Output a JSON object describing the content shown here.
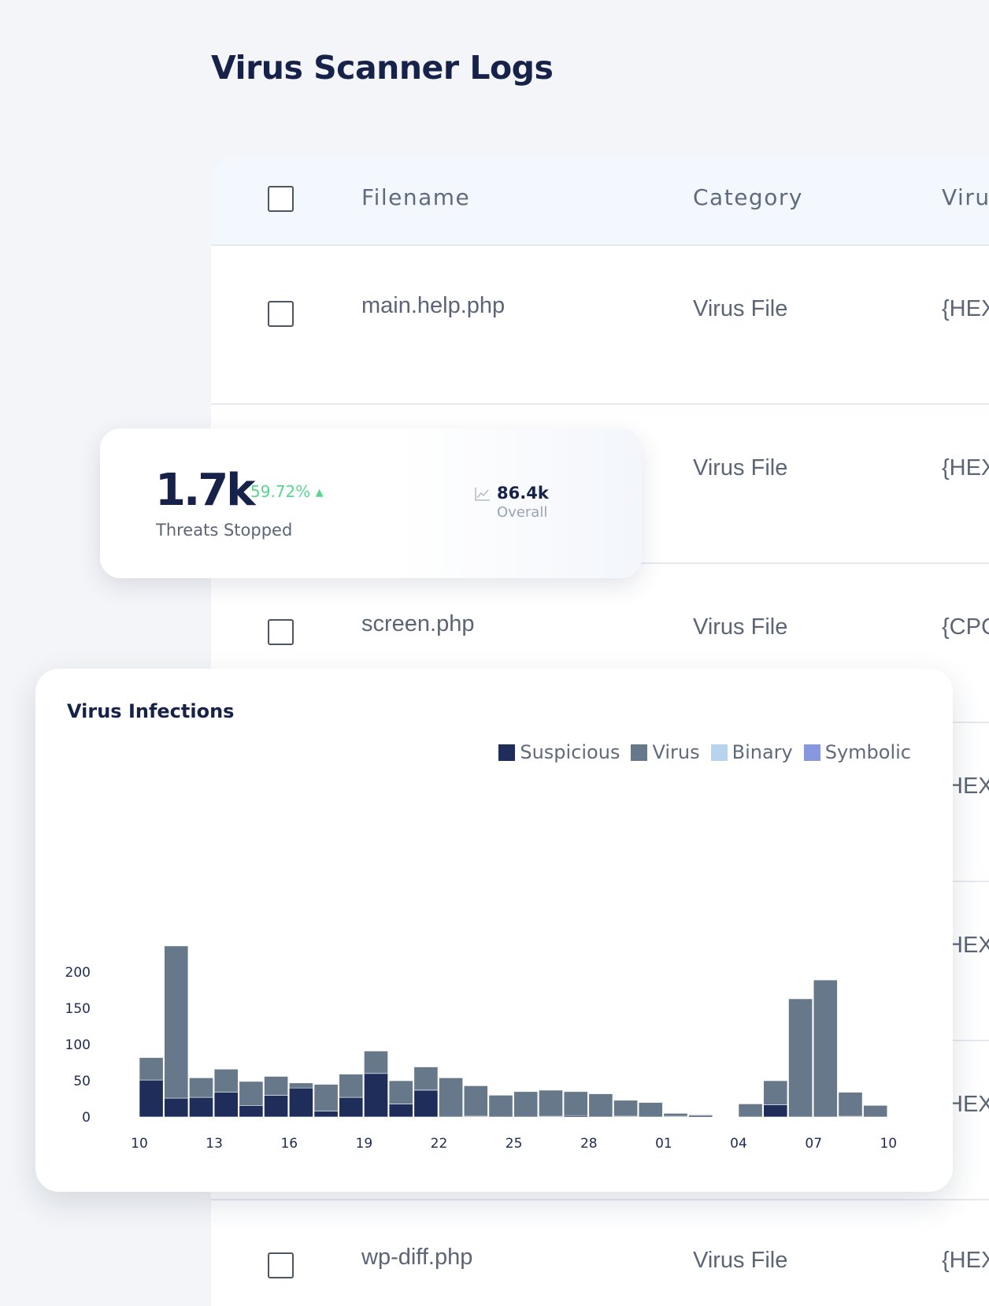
{
  "page": {
    "title": "Virus Scanner Logs"
  },
  "table": {
    "columns": [
      "Filename",
      "Category",
      "Viru"
    ],
    "rows": [
      {
        "filename": "main.help.php",
        "category": "Virus File",
        "virus": "{HEX"
      },
      {
        "filename": "",
        "category": "Virus File",
        "virus": "{HEX"
      },
      {
        "filename": "screen.php",
        "category": "Virus File",
        "virus": "{CPC"
      },
      {
        "filename": "",
        "category": "",
        "virus": "HEX"
      },
      {
        "filename": "",
        "category": "",
        "virus": "HEX"
      },
      {
        "filename": "",
        "category": "",
        "virus": "HEX"
      },
      {
        "filename": "wp-diff.php",
        "category": "Virus File",
        "virus": "{HEX"
      }
    ]
  },
  "stats": {
    "threats_value": "1.7k",
    "threats_change": "59.72% ▴",
    "threats_label": "Threats Stopped",
    "overall_value": "86.4k",
    "overall_label": "Overall"
  },
  "chart": {
    "title": "Virus Infections",
    "legend": [
      {
        "name": "Suspicious",
        "color": "#1f2d5a"
      },
      {
        "name": "Virus",
        "color": "#667889"
      },
      {
        "name": "Binary",
        "color": "#b7d3ee"
      },
      {
        "name": "Symbolic",
        "color": "#8798e0"
      }
    ]
  },
  "chart_data": {
    "type": "bar",
    "stacked": true,
    "title": "Virus Infections",
    "ylim": [
      0,
      240
    ],
    "yticks": [
      0,
      50,
      100,
      150,
      200
    ],
    "xtick_labels": [
      "10",
      "13",
      "16",
      "19",
      "22",
      "25",
      "28",
      "01",
      "04",
      "07",
      "10"
    ],
    "categories": [
      "11",
      "12",
      "13",
      "14",
      "15",
      "16",
      "17",
      "18",
      "19",
      "20",
      "21",
      "22",
      "23",
      "24",
      "25",
      "26",
      "27",
      "28",
      "29",
      "30",
      "31",
      "01",
      "02",
      "03",
      "04",
      "05",
      "06",
      "07",
      "08",
      "09",
      "10"
    ],
    "series": [
      {
        "name": "Suspicious",
        "values": [
          51,
          26,
          27,
          34,
          16,
          30,
          40,
          8,
          27,
          60,
          18,
          37,
          0,
          1,
          0,
          0,
          1,
          2,
          0,
          1,
          0,
          1,
          2,
          0,
          0,
          17,
          0,
          0,
          1,
          0,
          0
        ]
      },
      {
        "name": "Virus",
        "values": [
          31,
          210,
          27,
          32,
          33,
          26,
          7,
          37,
          32,
          31,
          32,
          32,
          54,
          42,
          30,
          35,
          36,
          33,
          32,
          22,
          20,
          4,
          1,
          0,
          18,
          33,
          163,
          189,
          33,
          16,
          0
        ]
      },
      {
        "name": "Binary",
        "values": [
          0,
          0,
          0,
          0,
          0,
          0,
          0,
          0,
          0,
          0,
          0,
          0,
          0,
          0,
          0,
          0,
          0,
          0,
          0,
          0,
          0,
          0,
          0,
          0,
          0,
          0,
          0,
          0,
          0,
          0,
          0
        ]
      },
      {
        "name": "Symbolic",
        "values": [
          0,
          0,
          0,
          0,
          0,
          0,
          0,
          0,
          0,
          0,
          0,
          0,
          0,
          0,
          0,
          0,
          0,
          0,
          0,
          0,
          0,
          0,
          0,
          0,
          0,
          0,
          0,
          0,
          0,
          0,
          0
        ]
      }
    ],
    "grid": false,
    "legend_position": "top-right"
  }
}
